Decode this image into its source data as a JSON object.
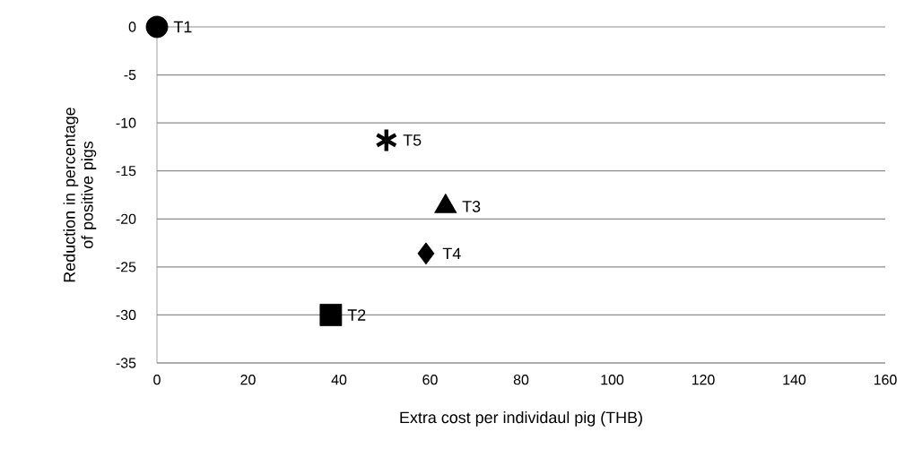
{
  "chart_data": {
    "type": "scatter",
    "xlabel": "Extra cost per individaul pig (THB)",
    "ylabel": "Reduction in percentage of positive pigs",
    "xlim": [
      0,
      160
    ],
    "xticks": [
      0,
      20,
      40,
      60,
      80,
      100,
      120,
      140,
      160
    ],
    "ylim": [
      -35,
      0
    ],
    "yticks": [
      -35,
      -30,
      -25,
      -20,
      -15,
      -10,
      -5,
      0
    ],
    "grid": "y",
    "legend": "top left",
    "series": [
      {
        "name": "T1",
        "x": [
          0
        ],
        "values": [
          0
        ],
        "marker": "circle",
        "color": "#000000"
      },
      {
        "name": "T5",
        "x": [
          50.4
        ],
        "values": [
          -11.8
        ],
        "marker": "cross",
        "color": "#000000"
      },
      {
        "name": "T3",
        "x": [
          63.4
        ],
        "values": [
          -18.7
        ],
        "marker": "triangle",
        "color": "#000000"
      },
      {
        "name": "T4",
        "x": [
          59.1
        ],
        "values": [
          -23.6
        ],
        "marker": "diamond",
        "color": "#000000"
      },
      {
        "name": "T2",
        "x": [
          38.2
        ],
        "values": [
          -30
        ],
        "marker": "square",
        "color": "#000000"
      }
    ]
  }
}
